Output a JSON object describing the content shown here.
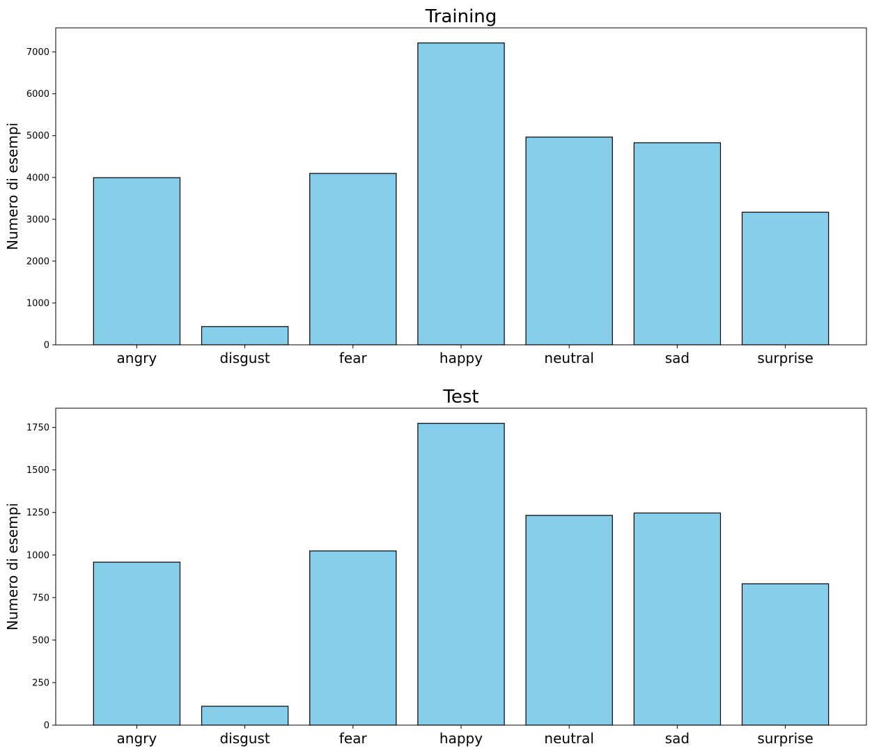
{
  "chart_data": [
    {
      "type": "bar",
      "title": "Training",
      "xlabel": "",
      "ylabel": "Numero di esempi",
      "categories": [
        "angry",
        "disgust",
        "fear",
        "happy",
        "neutral",
        "sad",
        "surprise"
      ],
      "values": [
        3995,
        436,
        4097,
        7215,
        4965,
        4830,
        3171
      ],
      "ylim": [
        0,
        7576
      ],
      "yticks": [
        0,
        1000,
        2000,
        3000,
        4000,
        5000,
        6000,
        7000
      ],
      "grid": false,
      "bar_color": "#87CEEB",
      "edge_color": "#000000"
    },
    {
      "type": "bar",
      "title": "Test",
      "xlabel": "",
      "ylabel": "Numero di esempi",
      "categories": [
        "angry",
        "disgust",
        "fear",
        "happy",
        "neutral",
        "sad",
        "surprise"
      ],
      "values": [
        958,
        111,
        1024,
        1774,
        1233,
        1247,
        831
      ],
      "ylim": [
        0,
        1863
      ],
      "yticks": [
        0,
        250,
        500,
        750,
        1000,
        1250,
        1500,
        1750
      ],
      "grid": false,
      "bar_color": "#87CEEB",
      "edge_color": "#000000"
    }
  ]
}
